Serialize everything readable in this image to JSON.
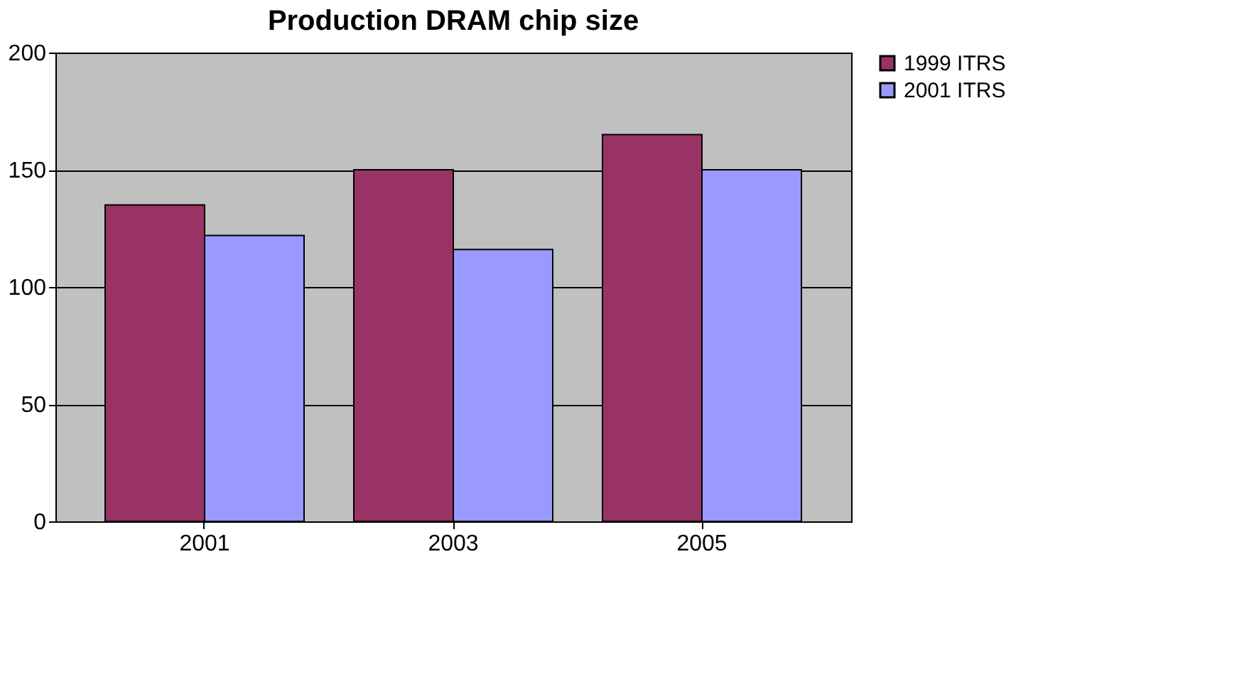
{
  "chart_data": {
    "type": "bar",
    "title": "Production DRAM chip size",
    "categories": [
      "2001",
      "2003",
      "2005"
    ],
    "series": [
      {
        "name": "1999 ITRS",
        "color": "#993366",
        "values": [
          135,
          150,
          165
        ]
      },
      {
        "name": "2001 ITRS",
        "color": "#9999ff",
        "values": [
          122,
          116,
          150
        ]
      }
    ],
    "ylim": [
      0,
      200
    ],
    "yticks": [
      0,
      50,
      100,
      150,
      200
    ],
    "grid": "y",
    "legend": "right"
  }
}
